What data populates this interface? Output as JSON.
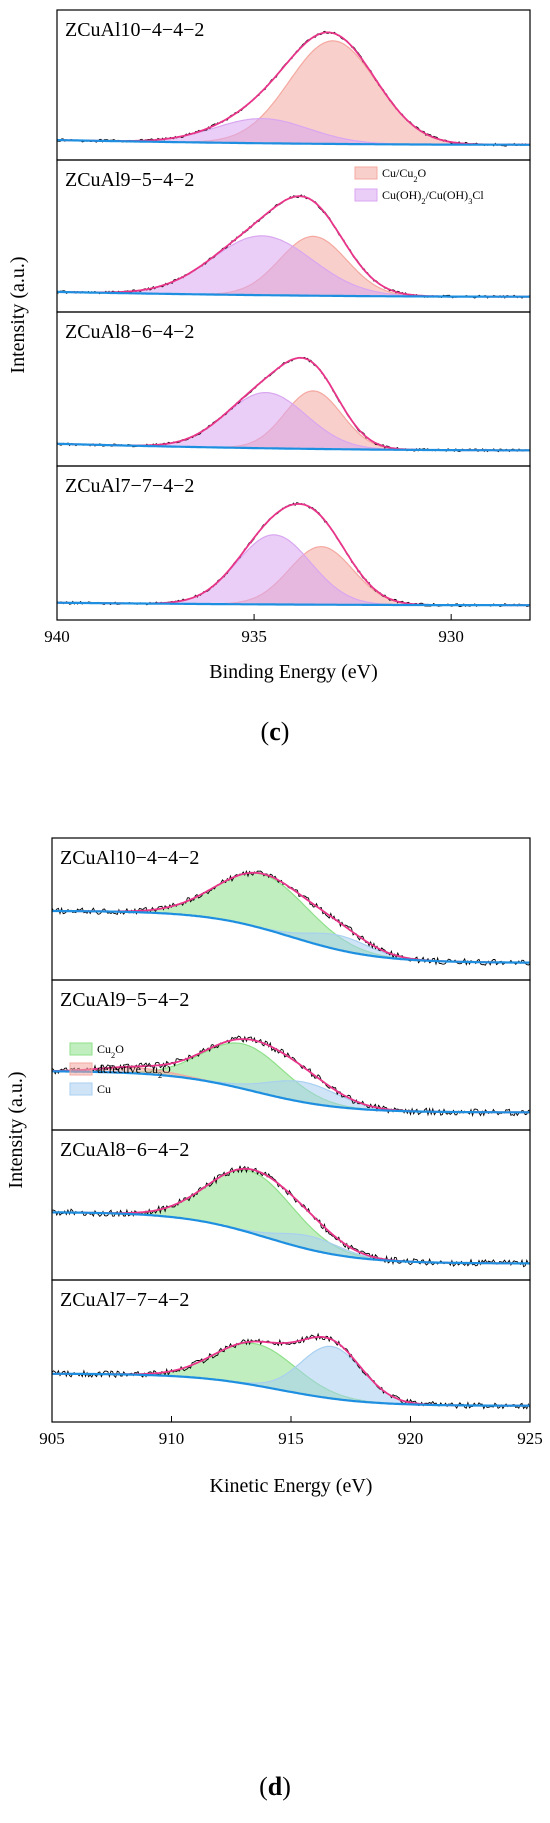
{
  "chart_data": [
    {
      "type": "area",
      "panel_letter": "(c)",
      "xlabel": "Binding Energy (eV)",
      "ylabel": "Intensity (a.u.)",
      "xlim": [
        940,
        928
      ],
      "x_ticks": [
        "940",
        "935",
        "930"
      ],
      "x_tick_values": [
        940,
        935,
        930
      ],
      "x_reversed": true,
      "legend_placement": "top-right of second subplot",
      "legend": [
        {
          "label_main": "Cu/Cu",
          "label_sub": "2",
          "label_tail": "O",
          "color": "#f4a8a0"
        },
        {
          "label_main": "Cu(OH)",
          "label_sub": "2",
          "label_tail": "/Cu(OH)",
          "label_sub2": "3",
          "label_tail2": "Cl",
          "color": "#d9a6f0"
        }
      ],
      "colors": {
        "envelope": "#e8358a",
        "background": "#1e8fe0",
        "raw": "#000000"
      },
      "subplots": [
        {
          "label": "ZCuAl10−4−4−2",
          "bg": [
            0.08,
            0.02
          ],
          "peaks": [
            {
              "series": "Cu/Cu2O",
              "center": 933.0,
              "fwhm": 2.6,
              "height": 0.92,
              "color": "#f4a8a0"
            },
            {
              "series": "Cu(OH)2/Cu(OH)3Cl",
              "center": 934.8,
              "fwhm": 2.8,
              "height": 0.22,
              "color": "#d9a6f0"
            }
          ]
        },
        {
          "label": "ZCuAl9−5−4−2",
          "bg": [
            0.08,
            0.02
          ],
          "peaks": [
            {
              "series": "Cu/Cu2O",
              "center": 933.5,
              "fwhm": 2.0,
              "height": 0.52,
              "color": "#f4a8a0"
            },
            {
              "series": "Cu(OH)2/Cu(OH)3Cl",
              "center": 934.8,
              "fwhm": 3.0,
              "height": 0.52,
              "color": "#d9a6f0"
            }
          ]
        },
        {
          "label": "ZCuAl8−6−4−2",
          "bg": [
            0.1,
            0.02
          ],
          "peaks": [
            {
              "series": "Cu/Cu2O",
              "center": 933.5,
              "fwhm": 1.7,
              "height": 0.5,
              "color": "#f4a8a0"
            },
            {
              "series": "Cu(OH)2/Cu(OH)3Cl",
              "center": 934.7,
              "fwhm": 2.4,
              "height": 0.48,
              "color": "#d9a6f0"
            }
          ]
        },
        {
          "label": "ZCuAl7−7−4−2",
          "bg": [
            0.05,
            0.02
          ],
          "peaks": [
            {
              "series": "Cu/Cu2O",
              "center": 933.3,
              "fwhm": 1.9,
              "height": 0.5,
              "color": "#f4a8a0"
            },
            {
              "series": "Cu(OH)2/Cu(OH)3Cl",
              "center": 934.5,
              "fwhm": 2.2,
              "height": 0.6,
              "color": "#d9a6f0"
            }
          ]
        }
      ]
    },
    {
      "type": "area",
      "panel_letter": "(d)",
      "xlabel": "Kinetic Energy (eV)",
      "ylabel": "Intensity (a.u.)",
      "xlim": [
        905,
        925
      ],
      "x_ticks": [
        "905",
        "910",
        "915",
        "920",
        "925"
      ],
      "x_tick_values": [
        905,
        910,
        915,
        920,
        925
      ],
      "x_reversed": false,
      "legend_placement": "lower-left of second subplot",
      "legend": [
        {
          "label_main": "Cu",
          "label_sub": "2",
          "label_tail": "O",
          "color": "#8ee08a"
        },
        {
          "label_main": "defective Cu",
          "label_sub": "2",
          "label_tail": "O",
          "color": "#f4a8a0"
        },
        {
          "label_main": "Cu",
          "label_sub": "",
          "label_tail": "",
          "color": "#a8cff0"
        }
      ],
      "colors": {
        "envelope": "#e8358a",
        "background": "#1e8fe0",
        "raw": "#000000"
      },
      "subplots": [
        {
          "label": "ZCuAl10−4−4−2",
          "bg": [
            0.55,
            0.05,
            915.0,
            1.8
          ],
          "peaks": [
            {
              "series": "Cu2O",
              "center": 913.8,
              "fwhm": 4.5,
              "height": 0.52,
              "color": "#8ee08a"
            },
            {
              "series": "Cu",
              "center": 917.0,
              "fwhm": 3.0,
              "height": 0.14,
              "color": "#a8cff0"
            }
          ]
        },
        {
          "label": "ZCuAl9−5−4−2",
          "bg": [
            0.42,
            0.05,
            913.5,
            1.8
          ],
          "peaks": [
            {
              "series": "Cu2O",
              "center": 913.0,
              "fwhm": 4.0,
              "height": 0.4,
              "color": "#8ee08a"
            },
            {
              "series": "defective Cu2O",
              "center": 908.5,
              "fwhm": 3.5,
              "height": 0.05,
              "color": "#f4a8a0"
            },
            {
              "series": "Cu",
              "center": 915.5,
              "fwhm": 3.5,
              "height": 0.18,
              "color": "#a8cff0"
            }
          ]
        },
        {
          "label": "ZCuAl8−6−4−2",
          "bg": [
            0.5,
            0.04,
            914.0,
            1.8
          ],
          "peaks": [
            {
              "series": "Cu2O",
              "center": 913.3,
              "fwhm": 4.2,
              "height": 0.55,
              "color": "#8ee08a"
            },
            {
              "series": "Cu",
              "center": 915.8,
              "fwhm": 3.0,
              "height": 0.12,
              "color": "#a8cff0"
            }
          ]
        },
        {
          "label": "ZCuAl7−7−4−2",
          "bg": [
            0.35,
            0.04,
            914.5,
            1.8
          ],
          "peaks": [
            {
              "series": "Cu2O",
              "center": 913.5,
              "fwhm": 4.0,
              "height": 0.4,
              "color": "#8ee08a"
            },
            {
              "series": "Cu",
              "center": 916.7,
              "fwhm": 3.0,
              "height": 0.5,
              "color": "#a8cff0"
            }
          ]
        }
      ]
    }
  ]
}
